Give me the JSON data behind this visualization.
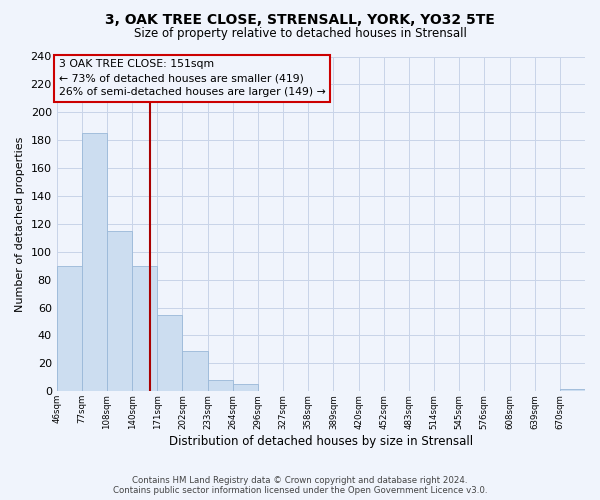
{
  "title": "3, OAK TREE CLOSE, STRENSALL, YORK, YO32 5TE",
  "subtitle": "Size of property relative to detached houses in Strensall",
  "xlabel": "Distribution of detached houses by size in Strensall",
  "ylabel": "Number of detached properties",
  "bar_color": "#ccddf0",
  "bar_edge_color": "#9ab8d8",
  "vline_color": "#aa0000",
  "bin_labels": [
    "46sqm",
    "77sqm",
    "108sqm",
    "140sqm",
    "171sqm",
    "202sqm",
    "233sqm",
    "264sqm",
    "296sqm",
    "327sqm",
    "358sqm",
    "389sqm",
    "420sqm",
    "452sqm",
    "483sqm",
    "514sqm",
    "545sqm",
    "576sqm",
    "608sqm",
    "639sqm",
    "670sqm"
  ],
  "bar_heights": [
    90,
    185,
    115,
    90,
    55,
    29,
    8,
    5,
    0,
    0,
    0,
    0,
    0,
    0,
    0,
    0,
    0,
    0,
    0,
    0,
    2
  ],
  "ylim": [
    0,
    240
  ],
  "yticks": [
    0,
    20,
    40,
    60,
    80,
    100,
    120,
    140,
    160,
    180,
    200,
    220,
    240
  ],
  "vline_pos": 3.72,
  "annotation_lines": [
    "3 OAK TREE CLOSE: 151sqm",
    "← 73% of detached houses are smaller (419)",
    "26% of semi-detached houses are larger (149) →"
  ],
  "footer_line1": "Contains HM Land Registry data © Crown copyright and database right 2024.",
  "footer_line2": "Contains public sector information licensed under the Open Government Licence v3.0.",
  "background_color": "#f0f4fc",
  "grid_color": "#c8d4e8"
}
